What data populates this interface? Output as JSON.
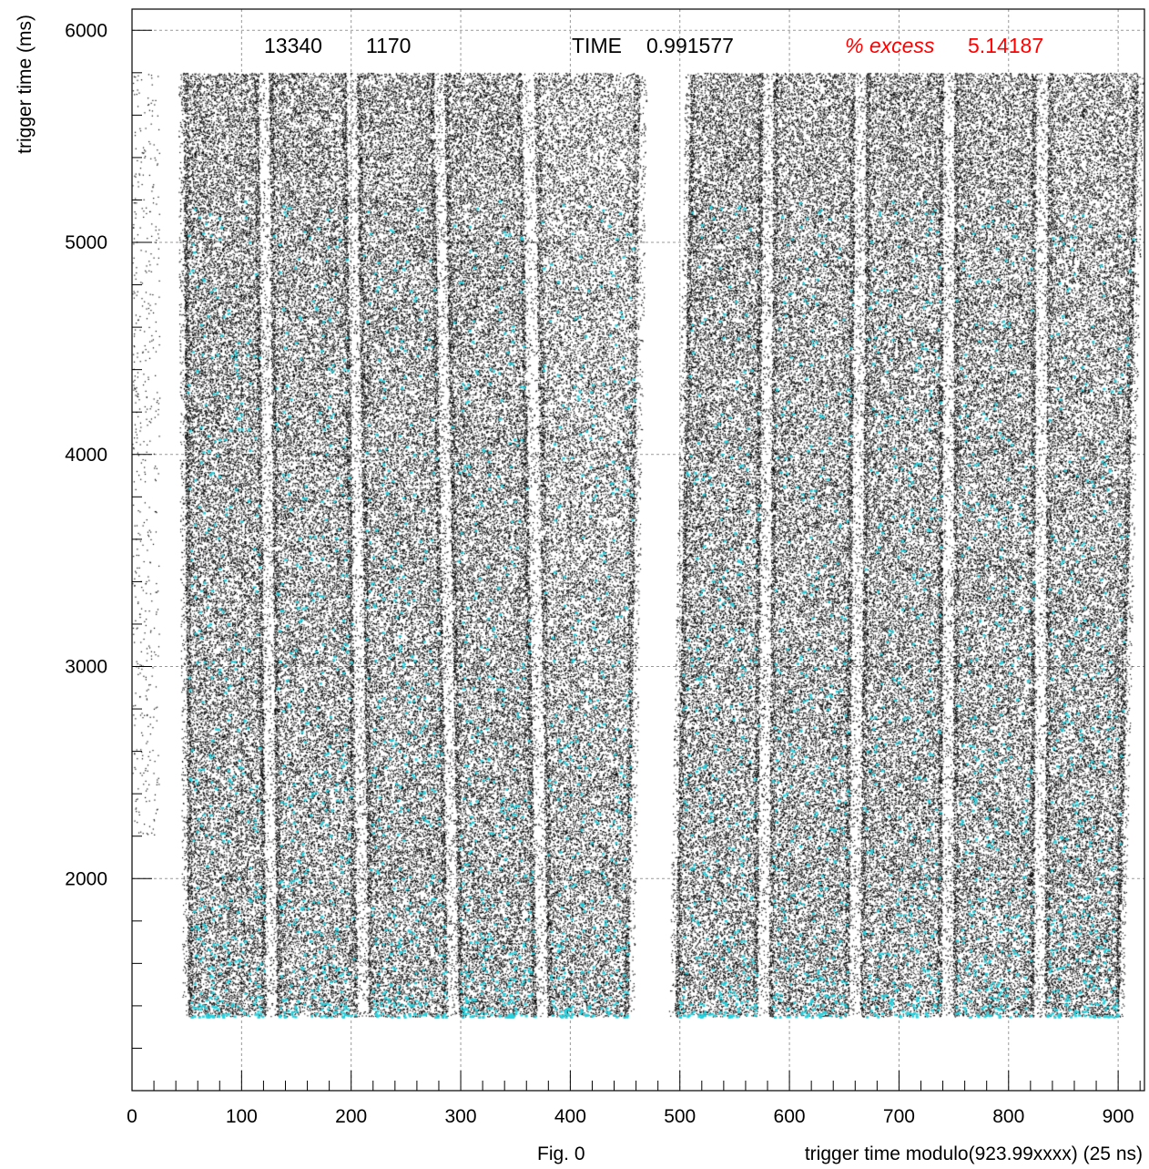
{
  "chart_data": {
    "type": "scatter",
    "title": "",
    "xlabel": "trigger time modulo(923.99xxxx) (25 ns)",
    "ylabel": "trigger time (ms)",
    "figure_label": "Fig. 0",
    "xlim": [
      0,
      924
    ],
    "ylim": [
      1000,
      6100
    ],
    "x_ticks": [
      0,
      100,
      200,
      300,
      400,
      500,
      600,
      700,
      800,
      900
    ],
    "x_tick_labels": [
      "0",
      "100",
      "200",
      "300",
      "400",
      "500",
      "600",
      "700",
      "800",
      "900"
    ],
    "y_ticks": [
      2000,
      3000,
      4000,
      5000,
      6000
    ],
    "y_tick_labels": [
      "2000",
      "3000",
      "4000",
      "5000",
      "6000"
    ],
    "grid": true,
    "annotations": {
      "count_a": "13340",
      "count_b": "1170",
      "time_label": "TIME",
      "time_value": "0.991577",
      "excess_label": "% excess",
      "excess_value": "5.14187"
    },
    "colors": {
      "points": "#000000",
      "highlight": "#22d3e0",
      "excess": "#ff0000",
      "grid": "#999999"
    },
    "series": [
      {
        "name": "",
        "color": "#000000",
        "description_points": "dense point cloud",
        "bands": [
          {
            "x_bottom": [
              46,
              127
            ],
            "x_top": [
              42,
              120
            ]
          },
          {
            "x_bottom": [
              127,
              211
            ],
            "x_top": [
              120,
              200
            ]
          },
          {
            "x_bottom": [
              211,
              293
            ],
            "x_top": [
              200,
              280
            ]
          },
          {
            "x_bottom": [
              293,
              374
            ],
            "x_top": [
              280,
              360
            ]
          },
          {
            "x_bottom": [
              374,
              458
            ],
            "x_top": [
              360,
              470
            ]
          },
          {
            "x_bottom": [
              490,
              576
            ],
            "x_top": [
              505,
              580
            ]
          },
          {
            "x_bottom": [
              576,
              659
            ],
            "x_top": [
              580,
              665
            ]
          },
          {
            "x_bottom": [
              659,
              744
            ],
            "x_top": [
              665,
              745
            ]
          },
          {
            "x_bottom": [
              744,
              828
            ],
            "x_top": [
              745,
              830
            ]
          },
          {
            "x_bottom": [
              828,
              905
            ],
            "x_top": [
              830,
              924
            ]
          }
        ],
        "y_range": [
          1350,
          5800
        ]
      },
      {
        "name": "",
        "color": "#22d3e0",
        "y_range": [
          1350,
          5200
        ],
        "density_note": "denser toward lower trigger time"
      }
    ]
  }
}
